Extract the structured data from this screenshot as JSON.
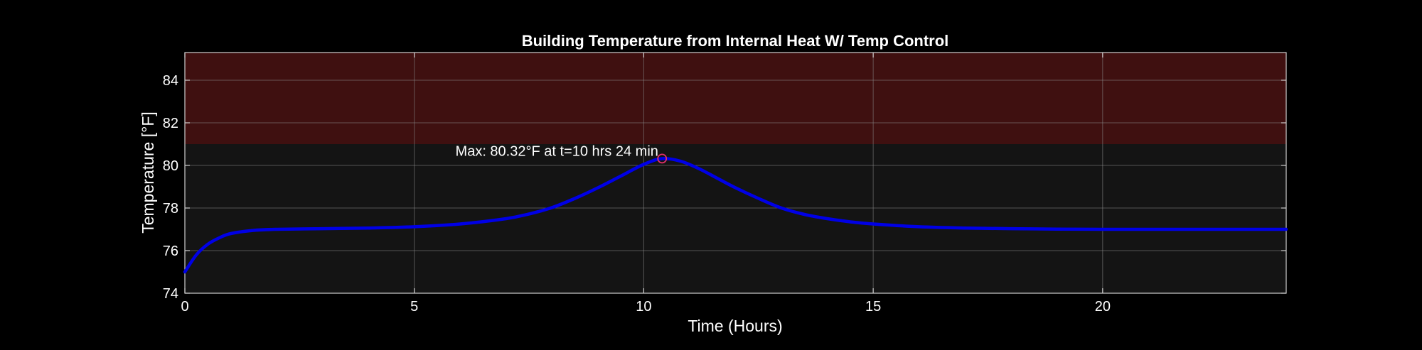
{
  "chart_data": {
    "type": "line",
    "title": "Building Temperature from Internal Heat W/ Temp Control",
    "xlabel": "Time (Hours)",
    "ylabel": "Temperature [°F]",
    "xlim": [
      0,
      24
    ],
    "ylim": [
      74,
      85.3
    ],
    "xticks": [
      0,
      5,
      10,
      15,
      20
    ],
    "yticks": [
      74,
      76,
      78,
      80,
      82,
      84
    ],
    "grid": true,
    "shaded_region": {
      "y_from": 81,
      "y_to": 85.3,
      "color": "#3f1010"
    },
    "colors": {
      "background": "#000000",
      "axes_bg": "#141414",
      "line": "#0000e6",
      "marker": "#e0306a",
      "text": "#ffffff"
    },
    "series": [
      {
        "name": "Building Temperature",
        "x": [
          0,
          0.25,
          0.5,
          0.75,
          1,
          1.5,
          2,
          3,
          4,
          5,
          6,
          7,
          7.5,
          8,
          8.5,
          9,
          9.5,
          10,
          10.4,
          10.8,
          11.2,
          11.6,
          12,
          12.5,
          13,
          13.5,
          14,
          14.5,
          15,
          16,
          17,
          18,
          19,
          20,
          21,
          22,
          23,
          24
        ],
        "y": [
          75.0,
          75.8,
          76.3,
          76.6,
          76.8,
          76.95,
          77.0,
          77.03,
          77.06,
          77.12,
          77.25,
          77.5,
          77.72,
          78.02,
          78.45,
          78.95,
          79.5,
          80.05,
          80.32,
          80.2,
          79.85,
          79.4,
          78.95,
          78.45,
          78.0,
          77.7,
          77.5,
          77.35,
          77.25,
          77.12,
          77.06,
          77.03,
          77.01,
          77.0,
          77.0,
          77.0,
          77.0,
          77.0
        ]
      }
    ],
    "annotations": [
      {
        "text": "Max: 80.32°F at t=10 hrs 24 min",
        "x": 10.4,
        "y": 80.32
      }
    ]
  }
}
